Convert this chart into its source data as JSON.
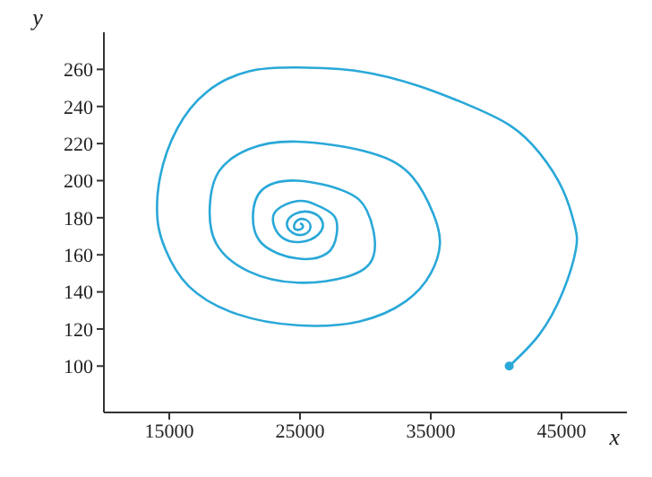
{
  "chart_data": {
    "type": "line",
    "xlabel": "x",
    "ylabel": "y",
    "xlim": [
      10000,
      50000
    ],
    "ylim": [
      75,
      280
    ],
    "xticks": [
      15000,
      25000,
      35000,
      45000
    ],
    "yticks": [
      100,
      120,
      140,
      160,
      180,
      200,
      220,
      240,
      260
    ],
    "grid": false,
    "line_style": "solid",
    "series": [
      {
        "color": "#29a8d8",
        "x": [
          41000,
          43300,
          45100,
          46100,
          46000,
          45100,
          43300,
          41000,
          37800,
          34100,
          29500,
          24800,
          21100,
          17900,
          15600,
          14300,
          14100,
          14700,
          16500,
          20200,
          24800,
          29500,
          33100,
          35000,
          35700,
          35200,
          33600,
          30400,
          24800,
          21100,
          18800,
          18100,
          18600,
          21100,
          24800,
          28500,
          30400,
          30700,
          30100,
          28500,
          24800,
          22100,
          21400,
          22100,
          24800,
          27100,
          27800,
          27600,
          26200,
          24800,
          23200,
          23000,
          23700,
          25100,
          26400,
          26700,
          25800,
          24600,
          24000,
          24400,
          25300,
          25800,
          25400,
          24700,
          24600,
          25100,
          25200,
          25000
        ],
        "values": [
          100,
          117,
          140,
          163,
          176,
          195,
          215,
          230,
          241,
          251,
          259,
          261,
          259,
          248,
          228,
          202,
          179,
          163,
          143,
          128,
          122,
          124,
          135,
          150,
          166,
          182,
          202,
          215,
          221,
          217,
          205,
          186,
          166,
          151,
          145,
          148,
          156,
          169,
          184,
          194,
          200,
          195,
          181,
          166,
          158,
          161,
          171,
          181,
          187,
          189,
          184,
          176,
          169,
          167,
          171,
          178,
          183,
          182,
          177,
          172,
          171,
          175,
          179,
          178,
          174,
          174,
          176,
          177
        ]
      },
      {
        "type": "scatter",
        "color": "#29a8d8",
        "x": [
          41000
        ],
        "values": [
          100
        ]
      }
    ]
  }
}
